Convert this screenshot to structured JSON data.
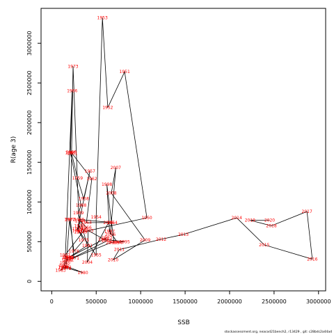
{
  "chart_data": {
    "type": "line",
    "xlabel": "SSB",
    "ylabel": "R(age 3)",
    "xlim": [
      -120000,
      3080000
    ],
    "ylim": [
      -120000,
      3440000
    ],
    "x_ticks": [
      0,
      500000,
      1000000,
      1500000,
      2000000,
      2500000,
      3000000
    ],
    "x_tick_labels": [
      "0",
      "500000",
      "1000000",
      "1500000",
      "2000000",
      "2500000",
      "3000000"
    ],
    "y_ticks": [
      0,
      500000,
      1000000,
      1500000,
      2000000,
      2500000,
      3000000
    ],
    "y_tick_labels": [
      "0",
      "500000",
      "1000000",
      "1500000",
      "2000000",
      "2500000",
      "3000000"
    ],
    "grid": false,
    "series_color": "#000000",
    "label_color": "#ff0000",
    "points": [
      {
        "year": "1946",
        "x": 320000,
        "y": 760000
      },
      {
        "year": "1947",
        "x": 290000,
        "y": 640000
      },
      {
        "year": "1948",
        "x": 310000,
        "y": 700000
      },
      {
        "year": "1949",
        "x": 340000,
        "y": 620000
      },
      {
        "year": "1950",
        "x": 1070000,
        "y": 800000
      },
      {
        "year": "1951",
        "x": 820000,
        "y": 2640000
      },
      {
        "year": "1952",
        "x": 630000,
        "y": 2190000
      },
      {
        "year": "1953",
        "x": 570000,
        "y": 3320000
      },
      {
        "year": "1954",
        "x": 500000,
        "y": 810000
      },
      {
        "year": "1955",
        "x": 500000,
        "y": 330000
      },
      {
        "year": "1956",
        "x": 290000,
        "y": 660000
      },
      {
        "year": "1957",
        "x": 430000,
        "y": 1390000
      },
      {
        "year": "1958",
        "x": 360000,
        "y": 1040000
      },
      {
        "year": "1959",
        "x": 290000,
        "y": 1300000
      },
      {
        "year": "1960",
        "x": 220000,
        "y": 1630000
      },
      {
        "year": "1961",
        "x": 230000,
        "y": 1610000
      },
      {
        "year": "1962",
        "x": 450000,
        "y": 1290000
      },
      {
        "year": "1963",
        "x": 390000,
        "y": 740000
      },
      {
        "year": "1964",
        "x": 680000,
        "y": 740000
      },
      {
        "year": "1965",
        "x": 310000,
        "y": 780000
      },
      {
        "year": "1966",
        "x": 390000,
        "y": 680000
      },
      {
        "year": "1967",
        "x": 150000,
        "y": 330000
      },
      {
        "year": "1968",
        "x": 170000,
        "y": 300000
      },
      {
        "year": "1969",
        "x": 170000,
        "y": 260000
      },
      {
        "year": "1970",
        "x": 180000,
        "y": 300000
      },
      {
        "year": "1971",
        "x": 250000,
        "y": 290000
      },
      {
        "year": "1972",
        "x": 210000,
        "y": 780000
      },
      {
        "year": "1973",
        "x": 240000,
        "y": 2710000
      },
      {
        "year": "1974",
        "x": 310000,
        "y": 620000
      },
      {
        "year": "1975",
        "x": 360000,
        "y": 520000
      },
      {
        "year": "1976",
        "x": 250000,
        "y": 380000
      },
      {
        "year": "1977",
        "x": 200000,
        "y": 780000
      },
      {
        "year": "1978",
        "x": 160000,
        "y": 160000
      },
      {
        "year": "1979",
        "x": 130000,
        "y": 180000
      },
      {
        "year": "1980",
        "x": 350000,
        "y": 110000
      },
      {
        "year": "1981",
        "x": 140000,
        "y": 200000
      },
      {
        "year": "1982",
        "x": 160000,
        "y": 180000
      },
      {
        "year": "1983",
        "x": 100000,
        "y": 140000
      },
      {
        "year": "1984",
        "x": 130000,
        "y": 180000
      },
      {
        "year": "1985",
        "x": 150000,
        "y": 230000
      },
      {
        "year": "1986",
        "x": 230000,
        "y": 2400000
      },
      {
        "year": "1987",
        "x": 210000,
        "y": 1620000
      },
      {
        "year": "1988",
        "x": 330000,
        "y": 960000
      },
      {
        "year": "1989",
        "x": 300000,
        "y": 860000
      },
      {
        "year": "1990",
        "x": 350000,
        "y": 650000
      },
      {
        "year": "1991",
        "x": 400000,
        "y": 450000
      },
      {
        "year": "1992",
        "x": 190000,
        "y": 300000
      },
      {
        "year": "1993",
        "x": 620000,
        "y": 550000
      },
      {
        "year": "1994",
        "x": 580000,
        "y": 530000
      },
      {
        "year": "1995",
        "x": 820000,
        "y": 500000
      },
      {
        "year": "1996",
        "x": 740000,
        "y": 490000
      },
      {
        "year": "1997",
        "x": 650000,
        "y": 630000
      },
      {
        "year": "1998",
        "x": 620000,
        "y": 1220000
      },
      {
        "year": "1999",
        "x": 700000,
        "y": 490000
      },
      {
        "year": "2000",
        "x": 670000,
        "y": 490000
      },
      {
        "year": "2001",
        "x": 190000,
        "y": 270000
      },
      {
        "year": "2002",
        "x": 620000,
        "y": 510000
      },
      {
        "year": "2003",
        "x": 410000,
        "y": 640000
      },
      {
        "year": "2004",
        "x": 400000,
        "y": 240000
      },
      {
        "year": "2005",
        "x": 640000,
        "y": 740000
      },
      {
        "year": "2006",
        "x": 660000,
        "y": 590000
      },
      {
        "year": "2007",
        "x": 720000,
        "y": 1430000
      },
      {
        "year": "2008",
        "x": 670000,
        "y": 1110000
      },
      {
        "year": "2009",
        "x": 1050000,
        "y": 520000
      },
      {
        "year": "2010",
        "x": 690000,
        "y": 270000
      },
      {
        "year": "2011",
        "x": 760000,
        "y": 400000
      },
      {
        "year": "2012",
        "x": 1230000,
        "y": 530000
      },
      {
        "year": "2013",
        "x": 1480000,
        "y": 590000
      },
      {
        "year": "2014",
        "x": 2080000,
        "y": 800000
      },
      {
        "year": "2015",
        "x": 2390000,
        "y": 460000
      },
      {
        "year": "2016",
        "x": 2930000,
        "y": 280000
      },
      {
        "year": "2017",
        "x": 2870000,
        "y": 880000
      },
      {
        "year": "2018",
        "x": 2470000,
        "y": 700000
      },
      {
        "year": "2019",
        "x": 2230000,
        "y": 770000
      },
      {
        "year": "2020",
        "x": 2450000,
        "y": 770000
      }
    ]
  },
  "credit": "stockassessment.org, neacod21bench2, r13429 , git: c28bdc2a44ad"
}
